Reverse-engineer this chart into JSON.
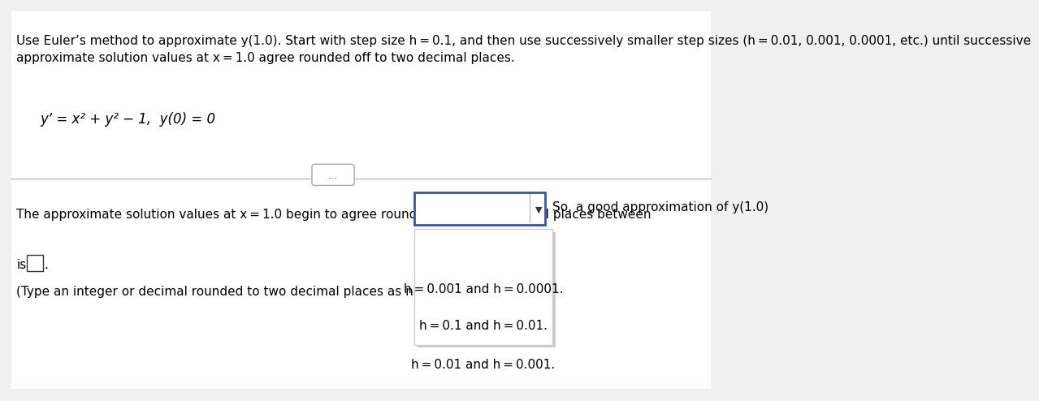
{
  "bg_color": "#f0f0f0",
  "content_bg": "#ffffff",
  "title_text": "Use Euler’s method to approximate y(1.0). Start with step size h = 0.1, and then use successively smaller step sizes (h = 0.01, 0.001, 0.0001, etc.) until successive\napproximate solution values at x = 1.0 agree rounded off to two decimal places.",
  "equation_text": "y’ = x² + y² − 1,  y(0) = 0",
  "divider_dots": "...",
  "main_question": "The approximate solution values at x = 1.0 begin to agree rounded off to two decimal places between",
  "suffix_text": "So, a good approximation of y(1.0)",
  "is_text": "is",
  "blank_hint": "(Type an integer or decimal rounded to two decimal places as needed.)",
  "dropdown_options": [
    "h = 0.001 and h = 0.0001.",
    "h = 0.1 and h = 0.01.",
    "h = 0.01 and h = 0.001."
  ],
  "dropdown_bg": "#ffffff",
  "dropdown_border": "#3355aa",
  "dropdown_shadow_bg": "#ffffff",
  "dropdown_shadow_border": "#cccccc",
  "text_color": "#000000",
  "fontsize_body": 11,
  "fontsize_eq": 12
}
